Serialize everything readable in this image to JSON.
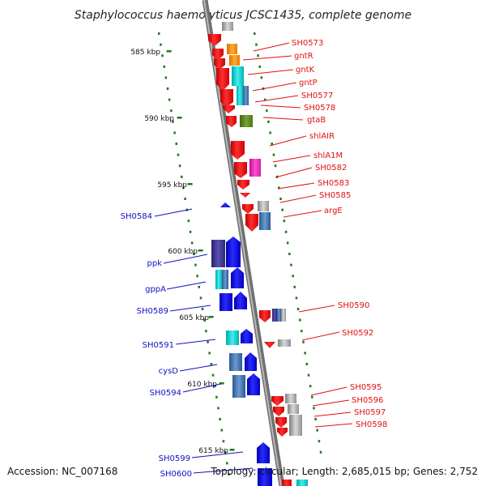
{
  "title": "Staphylococcus haemolyticus JCSC1435, complete genome",
  "footer": {
    "accession": "Accession: NC_007168",
    "info": "Topology: circular; Length: 2,685,015 bp; Genes: 2,752"
  },
  "scale_labels": [
    "585 kbp",
    "590 kbp",
    "595 kbp",
    "600 kbp",
    "605 kbp",
    "610 kbp",
    "615 kbp"
  ],
  "right_labels": [
    "SH0573",
    "gntR",
    "gntK",
    "gntP",
    "SH0577",
    "SH0578",
    "gtaB",
    "shlAIR",
    "shlA1M",
    "SH0582",
    "SH0583",
    "SH0585",
    "argE",
    "SH0590",
    "SH0592",
    "SH0595",
    "SH0596",
    "SH0597",
    "SH0598"
  ],
  "left_labels": [
    "SH0584",
    "ppk",
    "gppA",
    "SH0589",
    "SH0591",
    "cysD",
    "SH0594",
    "SH0599",
    "SH0600"
  ],
  "colors": {
    "forward_strand": "#1a10e8",
    "reverse_strand": "#ee1010",
    "backbone": "#909090",
    "scale_marks": "#1a7a1a"
  }
}
